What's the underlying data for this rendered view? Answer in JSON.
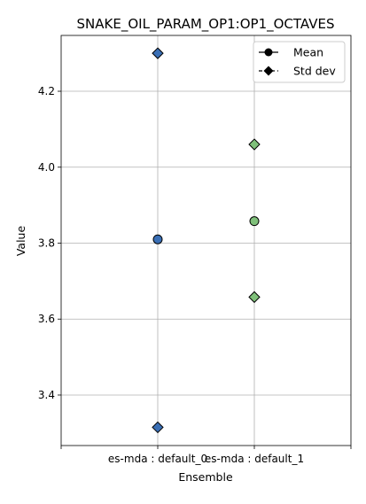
{
  "chart_data": {
    "type": "scatter",
    "title": "SNAKE_OIL_PARAM_OP1:OP1_OCTAVES",
    "xlabel": "Ensemble",
    "ylabel": "Value",
    "categories": [
      "es-mda : default_0",
      "es-mda : default_1"
    ],
    "ylim": [
      3.267,
      4.347
    ],
    "yticks": [
      3.4,
      3.6,
      3.8,
      4.0,
      4.2
    ],
    "ytick_labels": [
      "3.4",
      "3.6",
      "3.8",
      "4.0",
      "4.2"
    ],
    "grid": true,
    "legend_position": "top-right",
    "legend": [
      {
        "label": "Mean",
        "marker": "circle"
      },
      {
        "label": "Std dev",
        "marker": "diamond"
      }
    ],
    "series": [
      {
        "category": "es-mda : default_0",
        "color": "#3a6fb5",
        "mean": 3.81,
        "std_upper": 4.3,
        "std_lower": 3.315
      },
      {
        "category": "es-mda : default_1",
        "color": "#7fc07a",
        "mean": 3.858,
        "std_upper": 4.06,
        "std_lower": 3.658
      }
    ]
  }
}
